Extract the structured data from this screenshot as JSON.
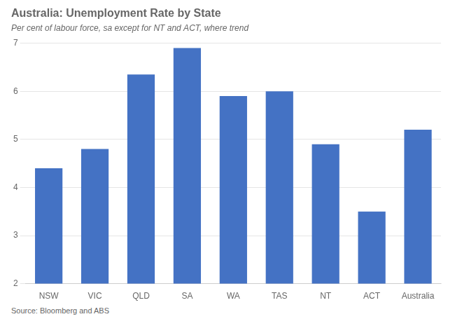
{
  "chart_data": {
    "type": "bar",
    "title": "Australia: Unemployment Rate by State",
    "subtitle": "Per cent of labour force, sa except for NT and ACT, where trend",
    "source": "Source: Bloomberg and ABS",
    "categories": [
      "NSW",
      "VIC",
      "QLD",
      "SA",
      "WA",
      "TAS",
      "NT",
      "ACT",
      "Australia"
    ],
    "values": [
      4.4,
      4.8,
      6.35,
      6.9,
      5.9,
      6.0,
      4.9,
      3.5,
      5.2
    ],
    "color": "#4472C4",
    "ylim": [
      2,
      7
    ],
    "yticks": [
      2,
      3,
      4,
      5,
      6,
      7
    ],
    "grid": true
  }
}
